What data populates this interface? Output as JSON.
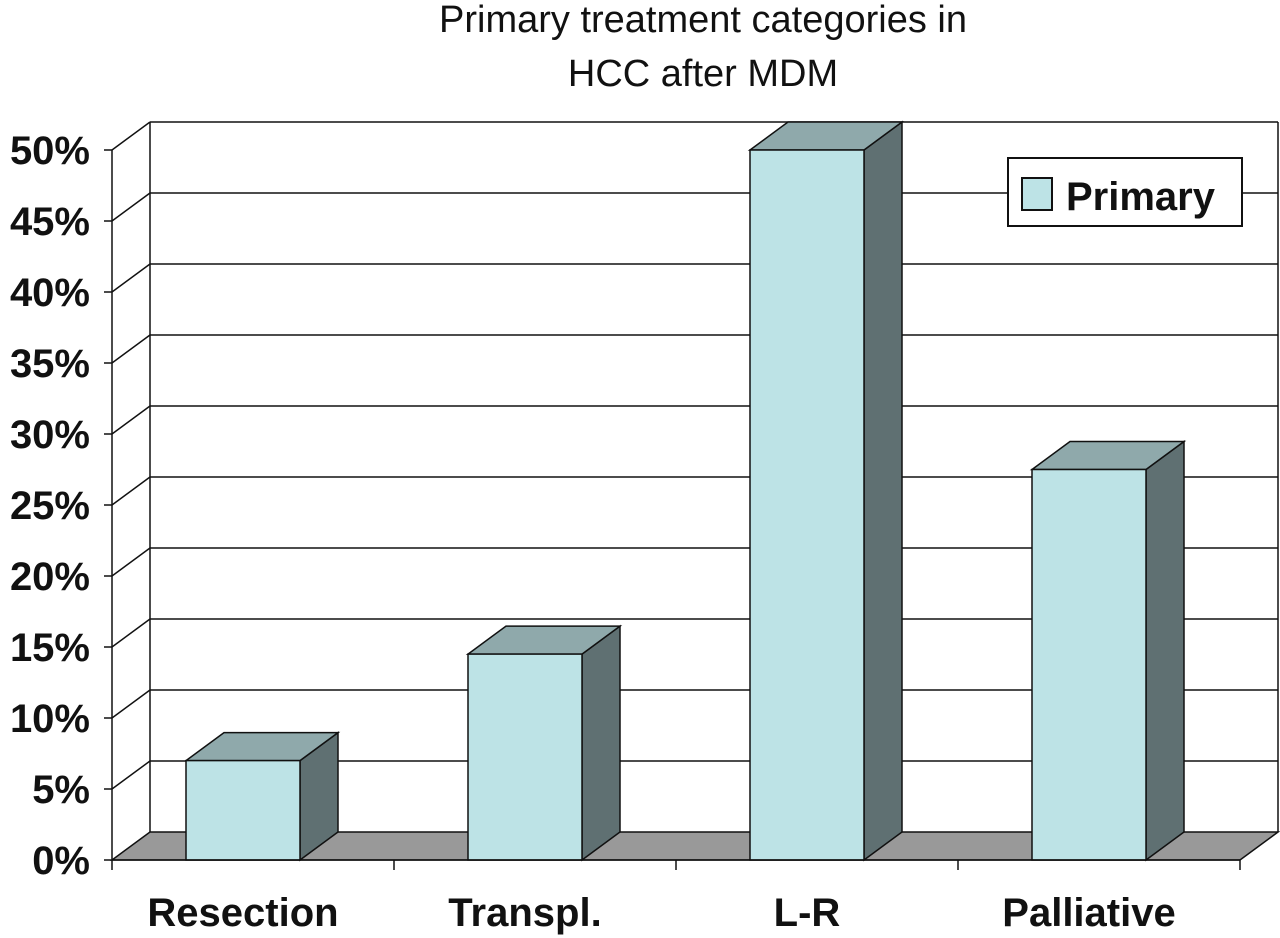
{
  "chart_data": {
    "type": "bar",
    "title_line1": "Primary treatment categories in",
    "title_line2": "HCC after MDM",
    "categories": [
      "Resection",
      "Transpl.",
      "L-R",
      "Palliative"
    ],
    "series": [
      {
        "name": "Primary",
        "values": [
          7,
          14.5,
          50,
          27.5
        ],
        "color": "#bde3e6"
      }
    ],
    "ylim": [
      0,
      50
    ],
    "yticks": [
      0,
      5,
      10,
      15,
      20,
      25,
      30,
      35,
      40,
      45,
      50
    ],
    "ytick_labels": [
      "0%",
      "5%",
      "10%",
      "15%",
      "20%",
      "25%",
      "30%",
      "35%",
      "40%",
      "45%",
      "50%"
    ],
    "grid": true,
    "legend_position": "top-right",
    "style": "3d",
    "colors": {
      "bar_front": "#bde3e6",
      "bar_top": "#8fa9ab",
      "bar_side": "#5f7072",
      "floor": "#999999"
    }
  }
}
